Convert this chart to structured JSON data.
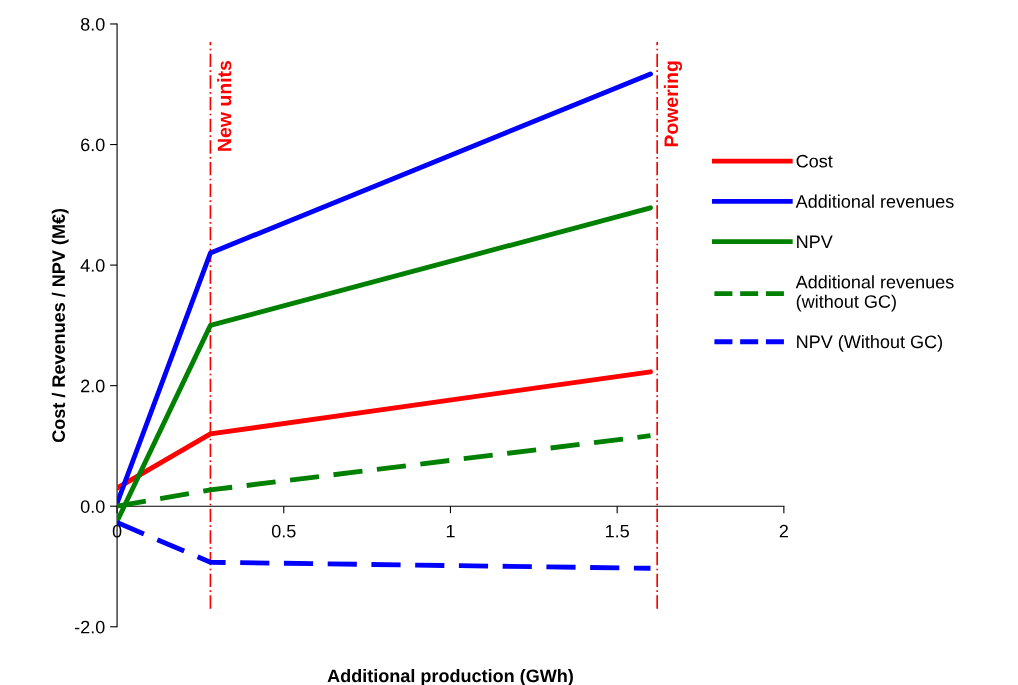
{
  "chart_data": {
    "type": "line",
    "xlabel": "Additional production (GWh)",
    "ylabel": "Cost / Revenues / NPV (M€)",
    "series": [
      {
        "name": "Cost",
        "color": "#ff0000",
        "x": [
          0,
          0.28,
          1.6
        ],
        "values": [
          0.3,
          1.2,
          2.23
        ],
        "line_style": "solid"
      },
      {
        "name": "Additional revenues",
        "color": "#0000ff",
        "x": [
          0,
          0.28,
          1.6
        ],
        "values": [
          0.05,
          4.2,
          7.17
        ],
        "line_style": "solid"
      },
      {
        "name": "NPV",
        "color": "#008000",
        "x": [
          0,
          0.28,
          1.6
        ],
        "values": [
          -0.25,
          3.0,
          4.95
        ],
        "line_style": "solid"
      },
      {
        "name": "Additional revenues\n(without GC)",
        "color": "#008000",
        "x": [
          0,
          0.28,
          1.6
        ],
        "values": [
          0.0,
          0.27,
          1.17
        ],
        "line_style": "dashed"
      },
      {
        "name": "NPV (Without GC)",
        "color": "#0000ff",
        "x": [
          0,
          0.28,
          1.6
        ],
        "values": [
          -0.27,
          -0.93,
          -1.03
        ],
        "line_style": "dashed"
      }
    ],
    "xlim": [
      0,
      2
    ],
    "xticks": [
      0,
      0.5,
      1,
      1.5,
      2
    ],
    "ylim": [
      -2,
      8
    ],
    "yticks": [
      {
        "value": -2,
        "label": "-2.0"
      },
      {
        "value": 0,
        "label": "0.0"
      },
      {
        "value": 2,
        "label": "2.0"
      },
      {
        "value": 4,
        "label": "4.0"
      },
      {
        "value": 6,
        "label": "6.0"
      },
      {
        "value": 8,
        "label": "8.0"
      }
    ],
    "ref_lines": [
      {
        "axis": "x",
        "value": 0.28,
        "label": "New units",
        "color": "#ff0000",
        "line_style": "dashdot"
      },
      {
        "axis": "x",
        "value": 1.62,
        "label": "Powering",
        "color": "#ff0000",
        "line_style": "dashdot"
      }
    ],
    "grid": false,
    "legend": "right",
    "marker": "none"
  }
}
